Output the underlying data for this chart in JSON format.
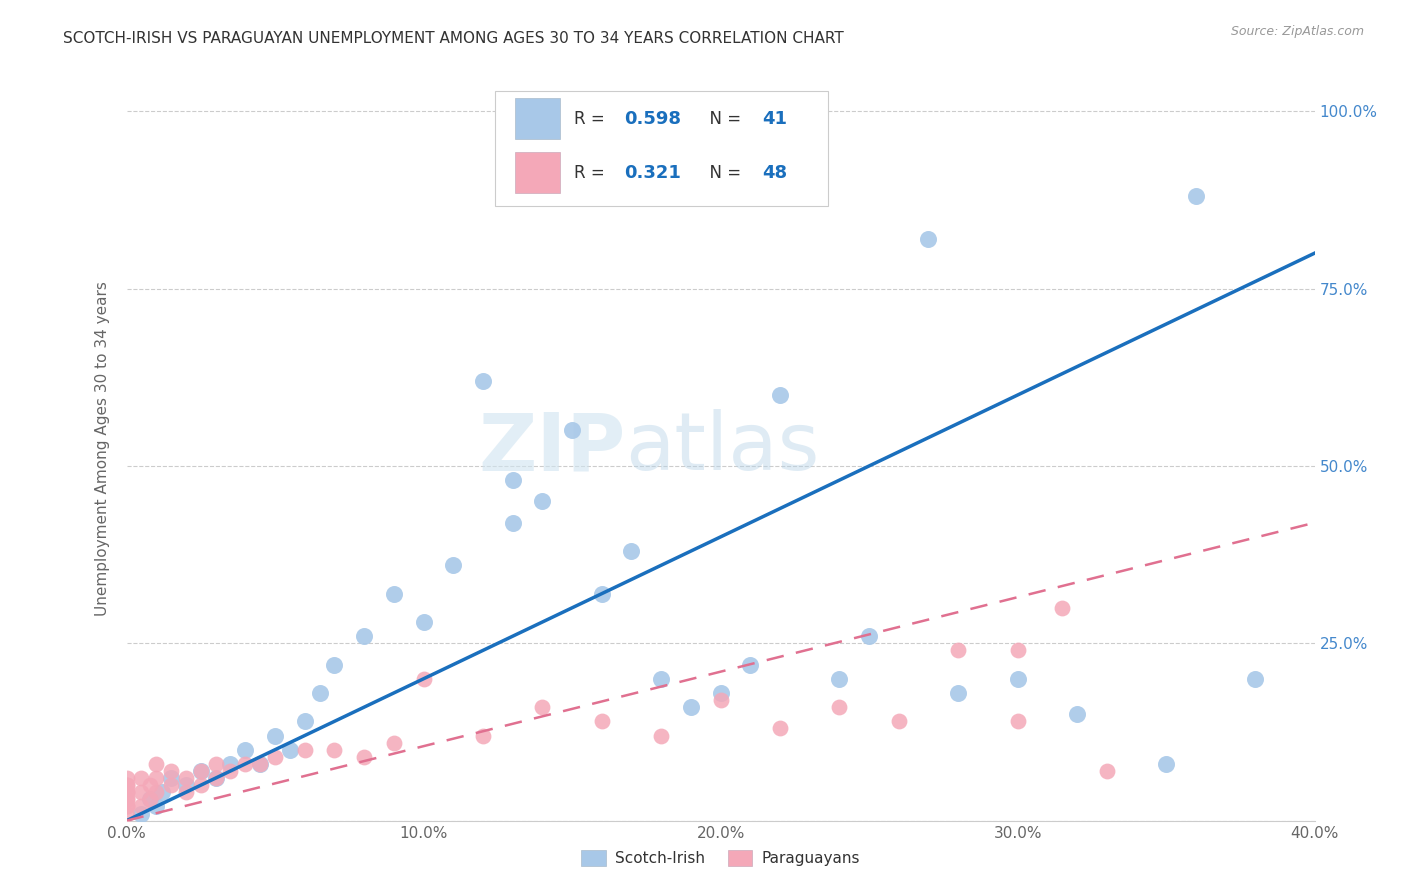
{
  "title": "SCOTCH-IRISH VS PARAGUAYAN UNEMPLOYMENT AMONG AGES 30 TO 34 YEARS CORRELATION CHART",
  "source": "Source: ZipAtlas.com",
  "ylabel": "Unemployment Among Ages 30 to 34 years",
  "xlim": [
    0.0,
    0.4
  ],
  "ylim": [
    0.0,
    1.05
  ],
  "xticks": [
    0.0,
    0.1,
    0.2,
    0.3,
    0.4
  ],
  "xtick_labels": [
    "0.0%",
    "10.0%",
    "20.0%",
    "30.0%",
    "40.0%"
  ],
  "yticks": [
    0.0,
    0.25,
    0.5,
    0.75,
    1.0
  ],
  "ytick_labels": [
    "",
    "25.0%",
    "50.0%",
    "75.0%",
    "100.0%"
  ],
  "scotch_irish_R": 0.598,
  "scotch_irish_N": 41,
  "paraguayan_R": 0.321,
  "paraguayan_N": 48,
  "scotch_irish_color": "#a8c8e8",
  "paraguayan_color": "#f4a8b8",
  "trendline_scotch_color": "#1a6fbd",
  "trendline_paraguayan_color": "#e07090",
  "background_color": "#ffffff",
  "watermark_zip": "ZIP",
  "watermark_atlas": "atlas",
  "scotch_irish_x": [
    0.005,
    0.008,
    0.01,
    0.012,
    0.015,
    0.02,
    0.025,
    0.03,
    0.035,
    0.04,
    0.045,
    0.05,
    0.055,
    0.06,
    0.065,
    0.07,
    0.08,
    0.09,
    0.1,
    0.11,
    0.12,
    0.13,
    0.13,
    0.14,
    0.15,
    0.16,
    0.17,
    0.18,
    0.19,
    0.2,
    0.21,
    0.22,
    0.24,
    0.25,
    0.27,
    0.28,
    0.3,
    0.32,
    0.35,
    0.36,
    0.38
  ],
  "scotch_irish_y": [
    0.01,
    0.03,
    0.02,
    0.04,
    0.06,
    0.05,
    0.07,
    0.06,
    0.08,
    0.1,
    0.08,
    0.12,
    0.1,
    0.14,
    0.18,
    0.22,
    0.26,
    0.32,
    0.28,
    0.36,
    0.62,
    0.42,
    0.48,
    0.45,
    0.55,
    0.32,
    0.38,
    0.2,
    0.16,
    0.18,
    0.22,
    0.6,
    0.2,
    0.26,
    0.82,
    0.18,
    0.2,
    0.15,
    0.08,
    0.88,
    0.2
  ],
  "paraguayan_x": [
    0.0,
    0.0,
    0.0,
    0.0,
    0.0,
    0.0,
    0.0,
    0.0,
    0.0,
    0.0,
    0.005,
    0.005,
    0.005,
    0.008,
    0.008,
    0.01,
    0.01,
    0.01,
    0.015,
    0.015,
    0.02,
    0.02,
    0.025,
    0.025,
    0.03,
    0.03,
    0.035,
    0.04,
    0.045,
    0.05,
    0.06,
    0.07,
    0.08,
    0.09,
    0.1,
    0.12,
    0.14,
    0.16,
    0.18,
    0.2,
    0.22,
    0.24,
    0.26,
    0.28,
    0.3,
    0.3,
    0.315,
    0.33
  ],
  "paraguayan_y": [
    0.01,
    0.02,
    0.02,
    0.03,
    0.03,
    0.04,
    0.04,
    0.05,
    0.05,
    0.06,
    0.02,
    0.04,
    0.06,
    0.03,
    0.05,
    0.04,
    0.06,
    0.08,
    0.05,
    0.07,
    0.04,
    0.06,
    0.05,
    0.07,
    0.06,
    0.08,
    0.07,
    0.08,
    0.08,
    0.09,
    0.1,
    0.1,
    0.09,
    0.11,
    0.2,
    0.12,
    0.16,
    0.14,
    0.12,
    0.17,
    0.13,
    0.16,
    0.14,
    0.24,
    0.14,
    0.24,
    0.3,
    0.07
  ]
}
